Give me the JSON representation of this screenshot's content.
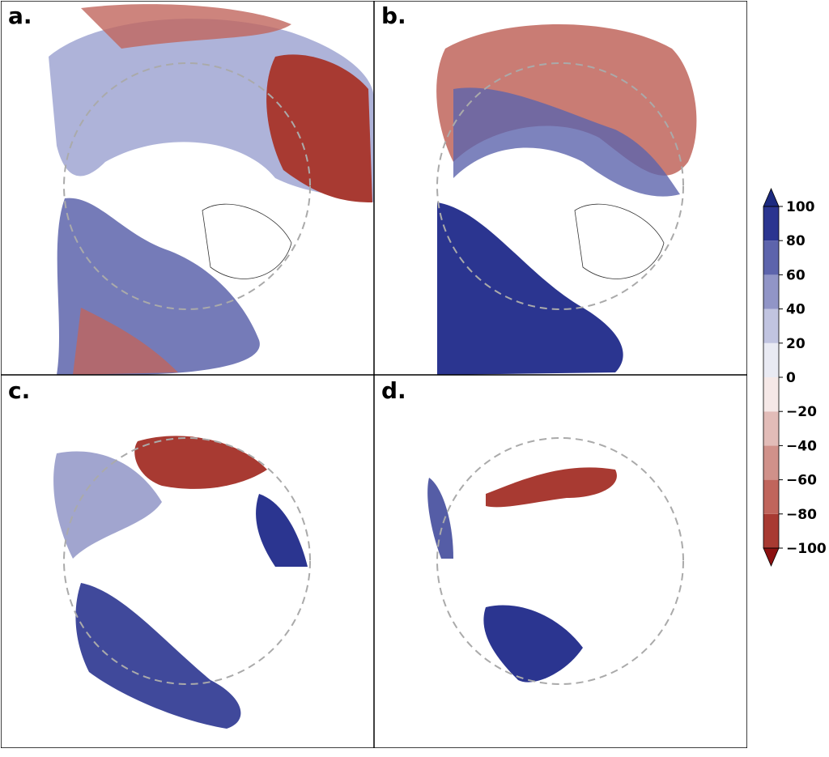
{
  "panels": [
    {
      "label": "a."
    },
    {
      "label": "b."
    },
    {
      "label": "c."
    },
    {
      "label": "d."
    }
  ],
  "colorbar": {
    "lim": [
      -100,
      100
    ],
    "ticks": [
      {
        "value": -100,
        "label": "−100"
      },
      {
        "value": -80,
        "label": "−80"
      },
      {
        "value": -60,
        "label": "−60"
      },
      {
        "value": -40,
        "label": "−40"
      },
      {
        "value": -20,
        "label": "−20"
      },
      0,
      20,
      40,
      60,
      80,
      100
    ],
    "colors": [
      "#a83a32",
      "#c0655c",
      "#d0918a",
      "#e2bcb8",
      "#f5e8e7",
      "#e9eaf3",
      "#c1c4e0",
      "#9195c7",
      "#5d64ac",
      "#2b3590"
    ],
    "under_color": "#8b1010",
    "over_color": "#1c2a80"
  }
}
